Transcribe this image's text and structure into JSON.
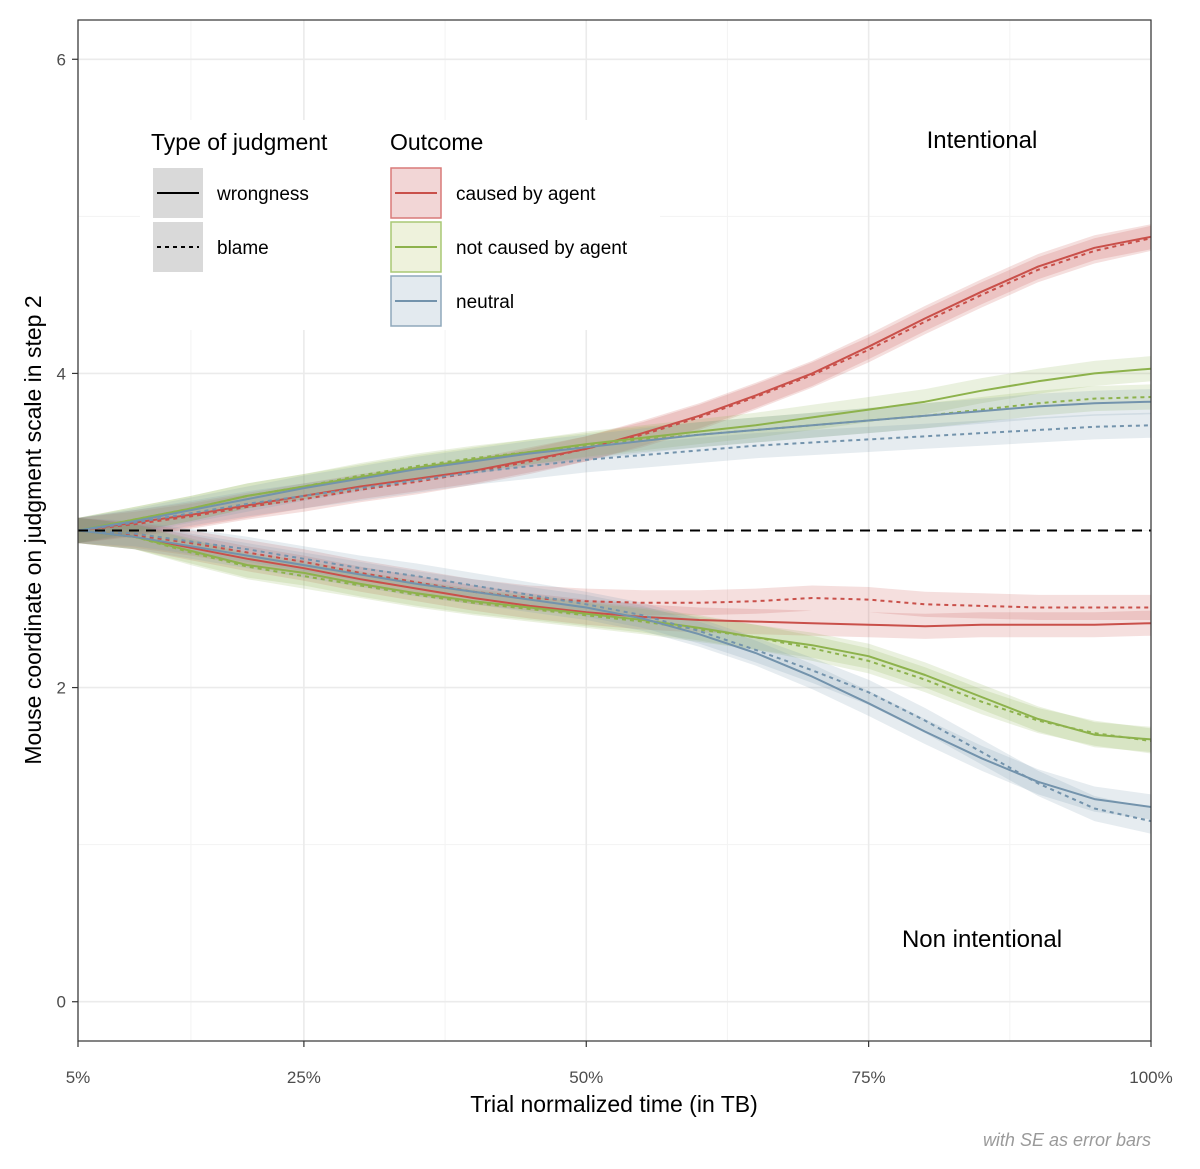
{
  "chart_data": {
    "type": "line",
    "xlabel": "Trial normalized time (in TB)",
    "ylabel": "Mouse coordinate on judgment scale in step 2",
    "caption": "with SE as error bars",
    "xlim": [
      5,
      100
    ],
    "ylim": [
      -0.25,
      6.25
    ],
    "x_ticks": [
      {
        "value": 5,
        "label": "5%"
      },
      {
        "value": 25,
        "label": "25%"
      },
      {
        "value": 50,
        "label": "50%"
      },
      {
        "value": 75,
        "label": "75%"
      },
      {
        "value": 100,
        "label": "100%"
      }
    ],
    "y_ticks": [
      {
        "value": 0,
        "label": "0"
      },
      {
        "value": 2,
        "label": "2"
      },
      {
        "value": 4,
        "label": "4"
      },
      {
        "value": 6,
        "label": "6"
      }
    ],
    "reference_line": 3,
    "annotations": [
      {
        "text": "Intentional",
        "x": 84,
        "y": 5.55
      },
      {
        "text": "Non intentional",
        "x": 84,
        "y": 0.45
      }
    ],
    "legend": {
      "placement": "top-left",
      "judgment_title": "Type of judgment",
      "judgment_items": [
        {
          "label": "wrongness",
          "dash": "solid"
        },
        {
          "label": "blame",
          "dash": "dotted"
        }
      ],
      "outcome_title": "Outcome",
      "outcome_items": [
        {
          "label": "caused by agent",
          "color": "#C9504A",
          "fill": "#F2D6D6",
          "border": "#D97A78"
        },
        {
          "label": "not caused by agent",
          "color": "#8DB24C",
          "fill": "#EEF2DC",
          "border": "#A9C875"
        },
        {
          "label": "neutral",
          "color": "#7393AC",
          "fill": "#E3EAEF",
          "border": "#8FA8BB"
        }
      ]
    },
    "x": [
      5,
      10,
      15,
      20,
      25,
      30,
      35,
      40,
      45,
      50,
      55,
      60,
      65,
      70,
      75,
      80,
      85,
      90,
      95,
      100
    ],
    "se_band": 0.08,
    "series": [
      {
        "name": "Intentional · caused by agent · wrongness",
        "outcome": "caused by agent",
        "judgment": "wrongness",
        "color": "#C9504A",
        "values": [
          3.0,
          3.05,
          3.1,
          3.16,
          3.22,
          3.28,
          3.33,
          3.38,
          3.45,
          3.52,
          3.62,
          3.73,
          3.86,
          4.0,
          4.17,
          4.35,
          4.52,
          4.68,
          4.8,
          4.87
        ]
      },
      {
        "name": "Intentional · caused by agent · blame",
        "outcome": "caused by agent",
        "judgment": "blame",
        "color": "#C9504A",
        "values": [
          3.0,
          3.04,
          3.09,
          3.15,
          3.2,
          3.26,
          3.31,
          3.37,
          3.44,
          3.52,
          3.61,
          3.72,
          3.85,
          3.99,
          4.15,
          4.33,
          4.5,
          4.66,
          4.78,
          4.86
        ]
      },
      {
        "name": "Intentional · not caused by agent · wrongness",
        "outcome": "not caused by agent",
        "judgment": "wrongness",
        "color": "#8DB24C",
        "values": [
          3.0,
          3.07,
          3.14,
          3.22,
          3.28,
          3.34,
          3.4,
          3.45,
          3.5,
          3.55,
          3.59,
          3.63,
          3.67,
          3.72,
          3.77,
          3.82,
          3.89,
          3.95,
          4.0,
          4.03
        ]
      },
      {
        "name": "Intentional · not caused by agent · blame",
        "outcome": "not caused by agent",
        "judgment": "blame",
        "color": "#8DB24C",
        "values": [
          3.0,
          3.07,
          3.14,
          3.22,
          3.28,
          3.35,
          3.41,
          3.46,
          3.5,
          3.54,
          3.58,
          3.61,
          3.64,
          3.67,
          3.7,
          3.73,
          3.77,
          3.81,
          3.84,
          3.85
        ]
      },
      {
        "name": "Intentional · neutral · wrongness",
        "outcome": "neutral",
        "judgment": "wrongness",
        "color": "#7393AC",
        "values": [
          3.0,
          3.06,
          3.13,
          3.2,
          3.27,
          3.33,
          3.39,
          3.44,
          3.49,
          3.53,
          3.57,
          3.61,
          3.64,
          3.67,
          3.7,
          3.73,
          3.76,
          3.79,
          3.81,
          3.82
        ]
      },
      {
        "name": "Intentional · neutral · blame",
        "outcome": "neutral",
        "judgment": "blame",
        "color": "#7393AC",
        "values": [
          3.0,
          3.05,
          3.11,
          3.17,
          3.22,
          3.27,
          3.32,
          3.37,
          3.41,
          3.45,
          3.48,
          3.51,
          3.54,
          3.56,
          3.58,
          3.6,
          3.62,
          3.64,
          3.66,
          3.67
        ]
      },
      {
        "name": "Non intentional · caused by agent · wrongness",
        "outcome": "caused by agent",
        "judgment": "wrongness",
        "color": "#C9504A",
        "values": [
          3.0,
          2.96,
          2.89,
          2.82,
          2.76,
          2.69,
          2.63,
          2.57,
          2.52,
          2.48,
          2.45,
          2.43,
          2.42,
          2.41,
          2.4,
          2.39,
          2.4,
          2.4,
          2.4,
          2.41
        ]
      },
      {
        "name": "Non intentional · caused by agent · blame",
        "outcome": "caused by agent",
        "judgment": "blame",
        "color": "#C9504A",
        "values": [
          3.0,
          2.97,
          2.92,
          2.86,
          2.8,
          2.73,
          2.67,
          2.61,
          2.57,
          2.55,
          2.54,
          2.54,
          2.55,
          2.57,
          2.56,
          2.53,
          2.52,
          2.51,
          2.51,
          2.51
        ]
      },
      {
        "name": "Non intentional · not caused by agent · wrongness",
        "outcome": "not caused by agent",
        "judgment": "wrongness",
        "color": "#8DB24C",
        "values": [
          3.0,
          2.96,
          2.87,
          2.78,
          2.73,
          2.66,
          2.6,
          2.55,
          2.51,
          2.47,
          2.43,
          2.38,
          2.32,
          2.27,
          2.2,
          2.08,
          1.94,
          1.8,
          1.7,
          1.67
        ]
      },
      {
        "name": "Non intentional · not caused by agent · blame",
        "outcome": "not caused by agent",
        "judgment": "blame",
        "color": "#8DB24C",
        "values": [
          3.0,
          2.96,
          2.86,
          2.77,
          2.71,
          2.65,
          2.59,
          2.54,
          2.5,
          2.46,
          2.42,
          2.37,
          2.32,
          2.25,
          2.17,
          2.05,
          1.91,
          1.79,
          1.71,
          1.66
        ]
      },
      {
        "name": "Non intentional · neutral · wrongness",
        "outcome": "neutral",
        "judgment": "wrongness",
        "color": "#7393AC",
        "values": [
          3.0,
          2.96,
          2.9,
          2.84,
          2.78,
          2.72,
          2.66,
          2.61,
          2.56,
          2.51,
          2.44,
          2.34,
          2.22,
          2.07,
          1.9,
          1.72,
          1.55,
          1.4,
          1.29,
          1.24
        ]
      },
      {
        "name": "Non intentional · neutral · blame",
        "outcome": "neutral",
        "judgment": "blame",
        "color": "#7393AC",
        "values": [
          3.0,
          2.98,
          2.93,
          2.88,
          2.82,
          2.76,
          2.71,
          2.65,
          2.59,
          2.53,
          2.46,
          2.36,
          2.24,
          2.11,
          1.97,
          1.79,
          1.59,
          1.39,
          1.23,
          1.15
        ]
      }
    ]
  }
}
